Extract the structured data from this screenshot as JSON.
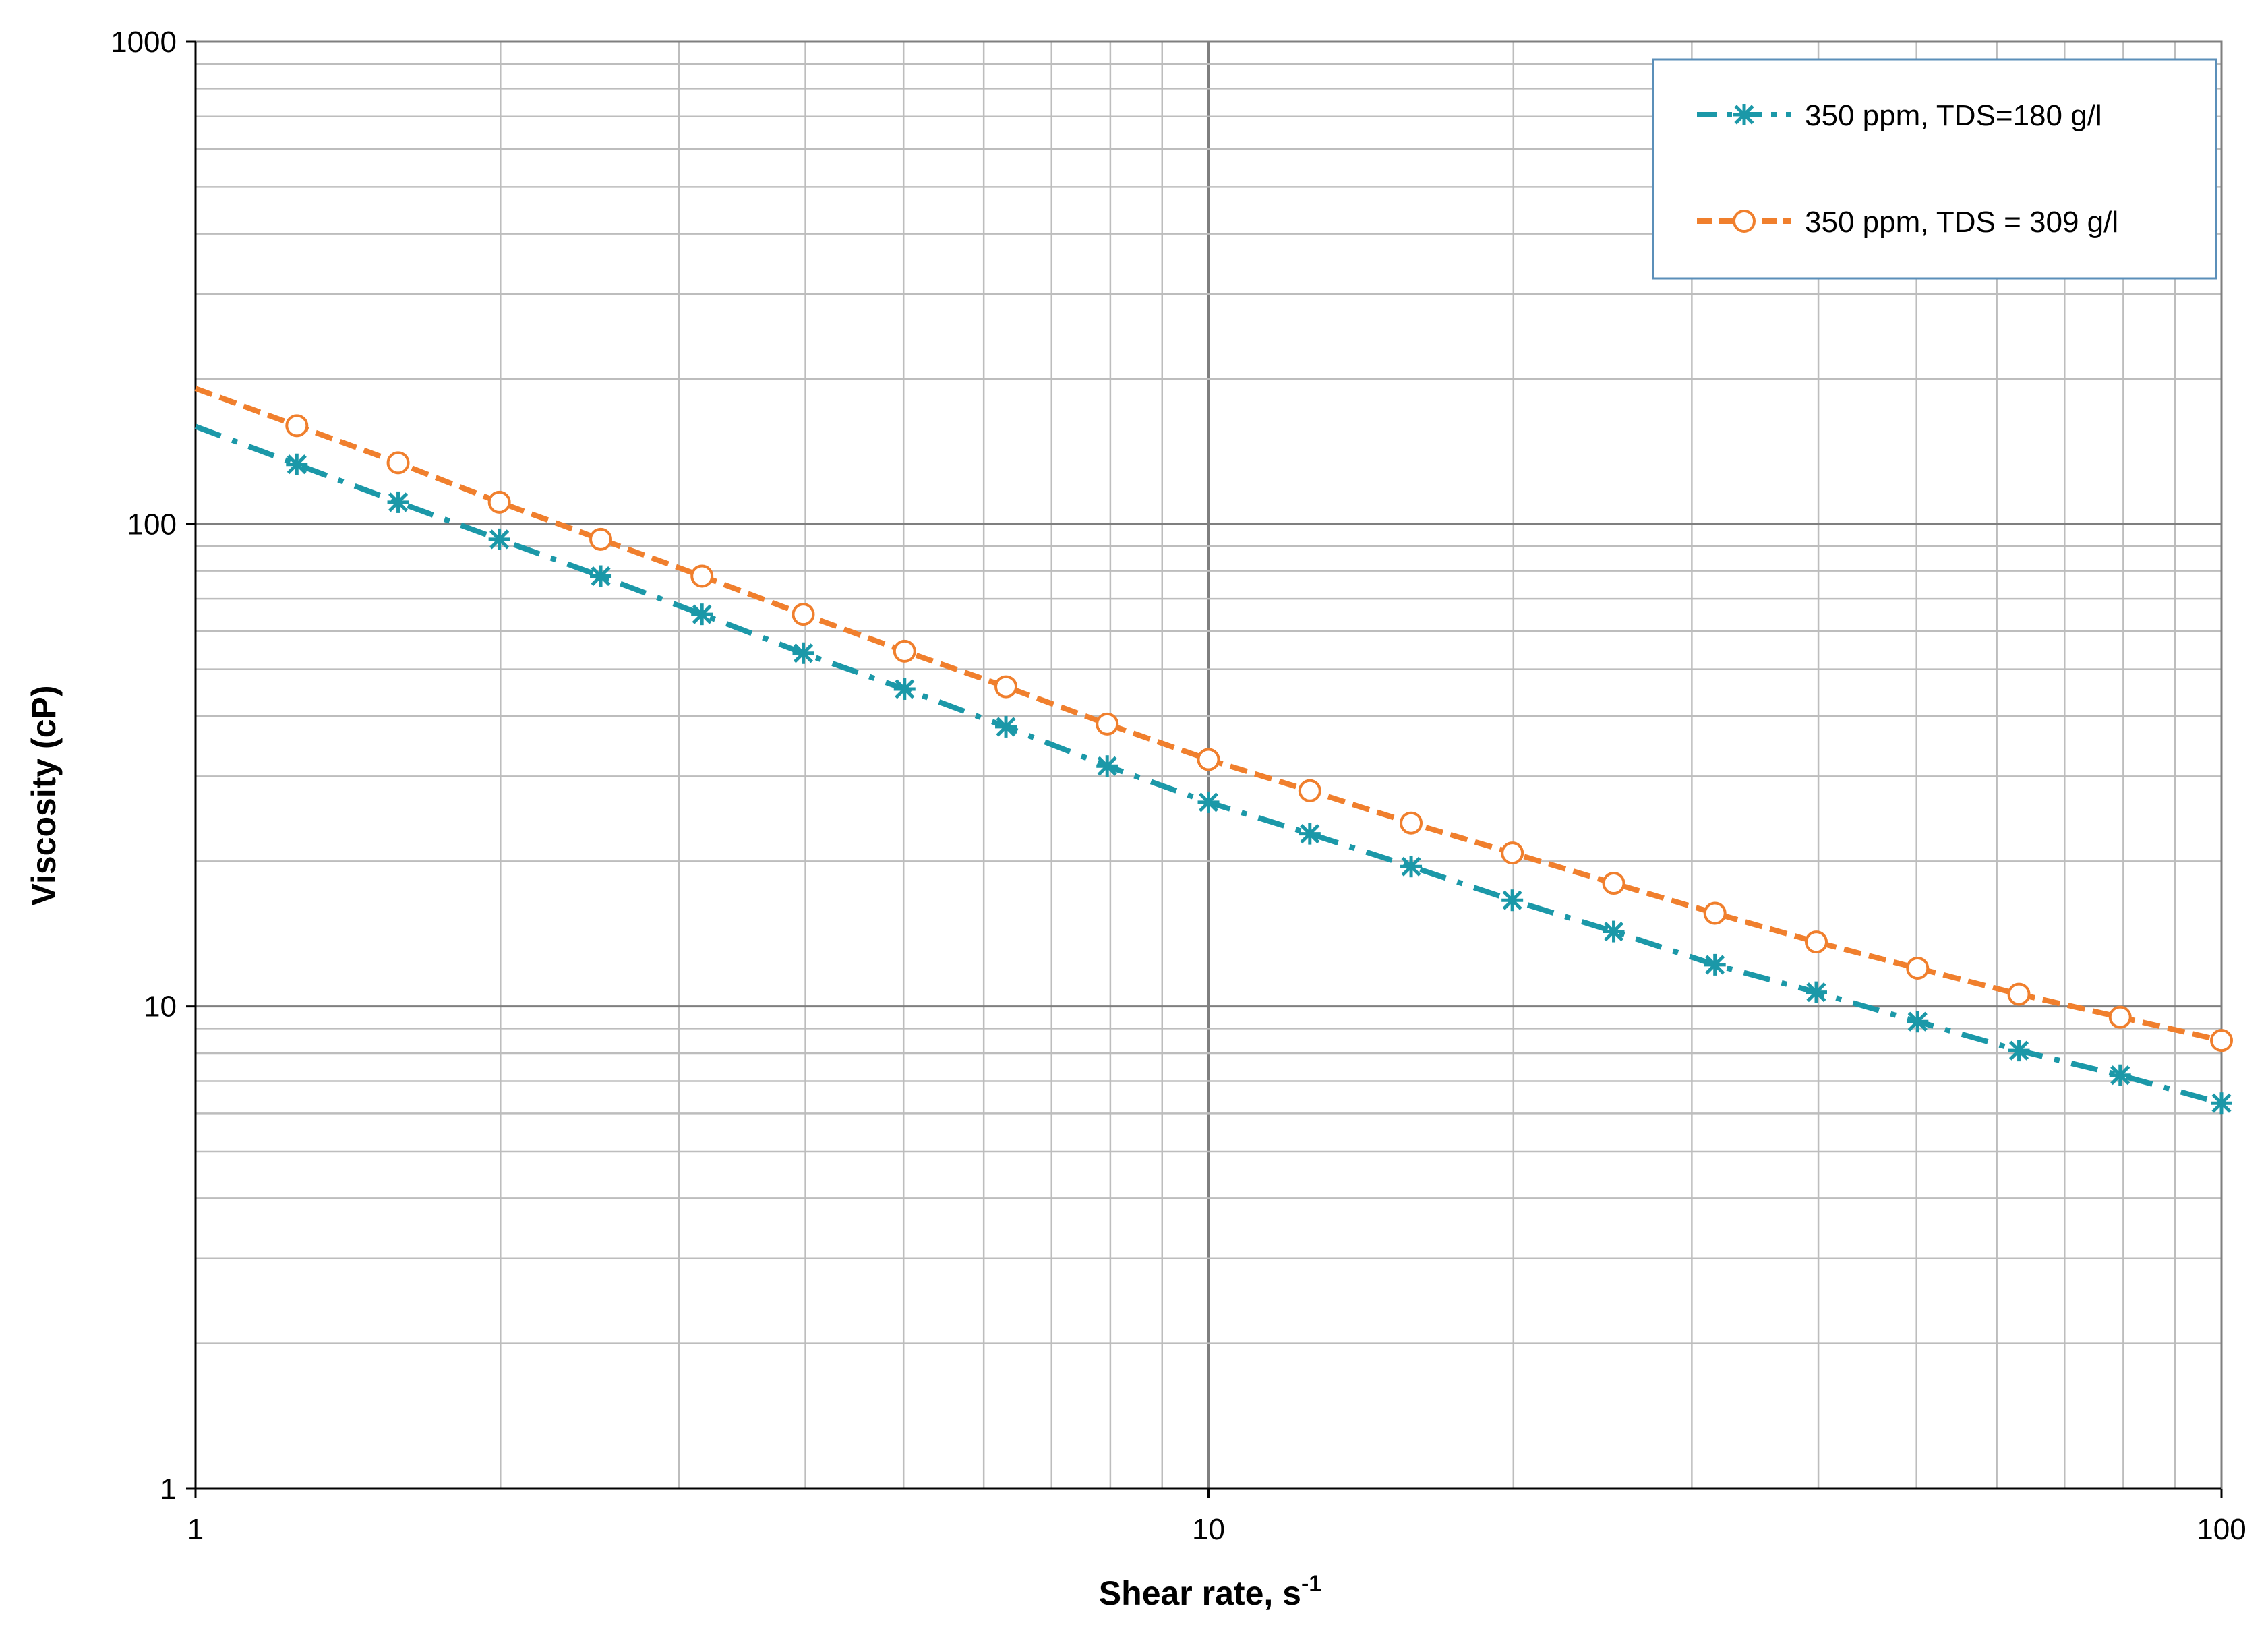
{
  "chart_data": {
    "type": "line",
    "title": "",
    "xlabel": "Shear rate, s",
    "xlabel_superscript": "-1",
    "ylabel": "Viscosity (cP)",
    "x_scale": "log",
    "y_scale": "log",
    "xlim": [
      1,
      100
    ],
    "ylim": [
      1,
      1000
    ],
    "x_ticks": [
      "1",
      "10",
      "100"
    ],
    "y_ticks": [
      "1",
      "10",
      "100",
      "1000"
    ],
    "grid": true,
    "legend_position": "top-right",
    "series": [
      {
        "name": "350 ppm, TDS=180 g/l",
        "color": "#1b98a8",
        "marker": "asterisk",
        "line_style": "dash-dot",
        "x": [
          1.259,
          1.585,
          1.995,
          2.512,
          3.162,
          3.981,
          5.012,
          6.31,
          7.943,
          10,
          12.59,
          15.85,
          19.95,
          25.12,
          31.62,
          39.81,
          50.12,
          63.1,
          79.43,
          100
        ],
        "y": [
          133,
          111,
          93,
          78,
          65,
          54,
          45.5,
          38,
          31.5,
          26.5,
          22.8,
          19.5,
          16.6,
          14.3,
          12.2,
          10.7,
          9.3,
          8.1,
          7.2,
          6.3
        ]
      },
      {
        "name": "350 ppm, TDS = 309 g/l",
        "color": "#f07f2d",
        "marker": "circle",
        "line_style": "dashed",
        "x": [
          1.259,
          1.585,
          1.995,
          2.512,
          3.162,
          3.981,
          5.012,
          6.31,
          7.943,
          10,
          12.59,
          15.85,
          19.95,
          25.12,
          31.62,
          39.81,
          50.12,
          63.1,
          79.43,
          100
        ],
        "y": [
          160,
          134,
          111,
          93,
          78,
          65,
          54.5,
          46,
          38.5,
          32.5,
          28,
          24,
          20.8,
          18,
          15.6,
          13.6,
          12,
          10.6,
          9.5,
          8.5
        ]
      }
    ]
  }
}
